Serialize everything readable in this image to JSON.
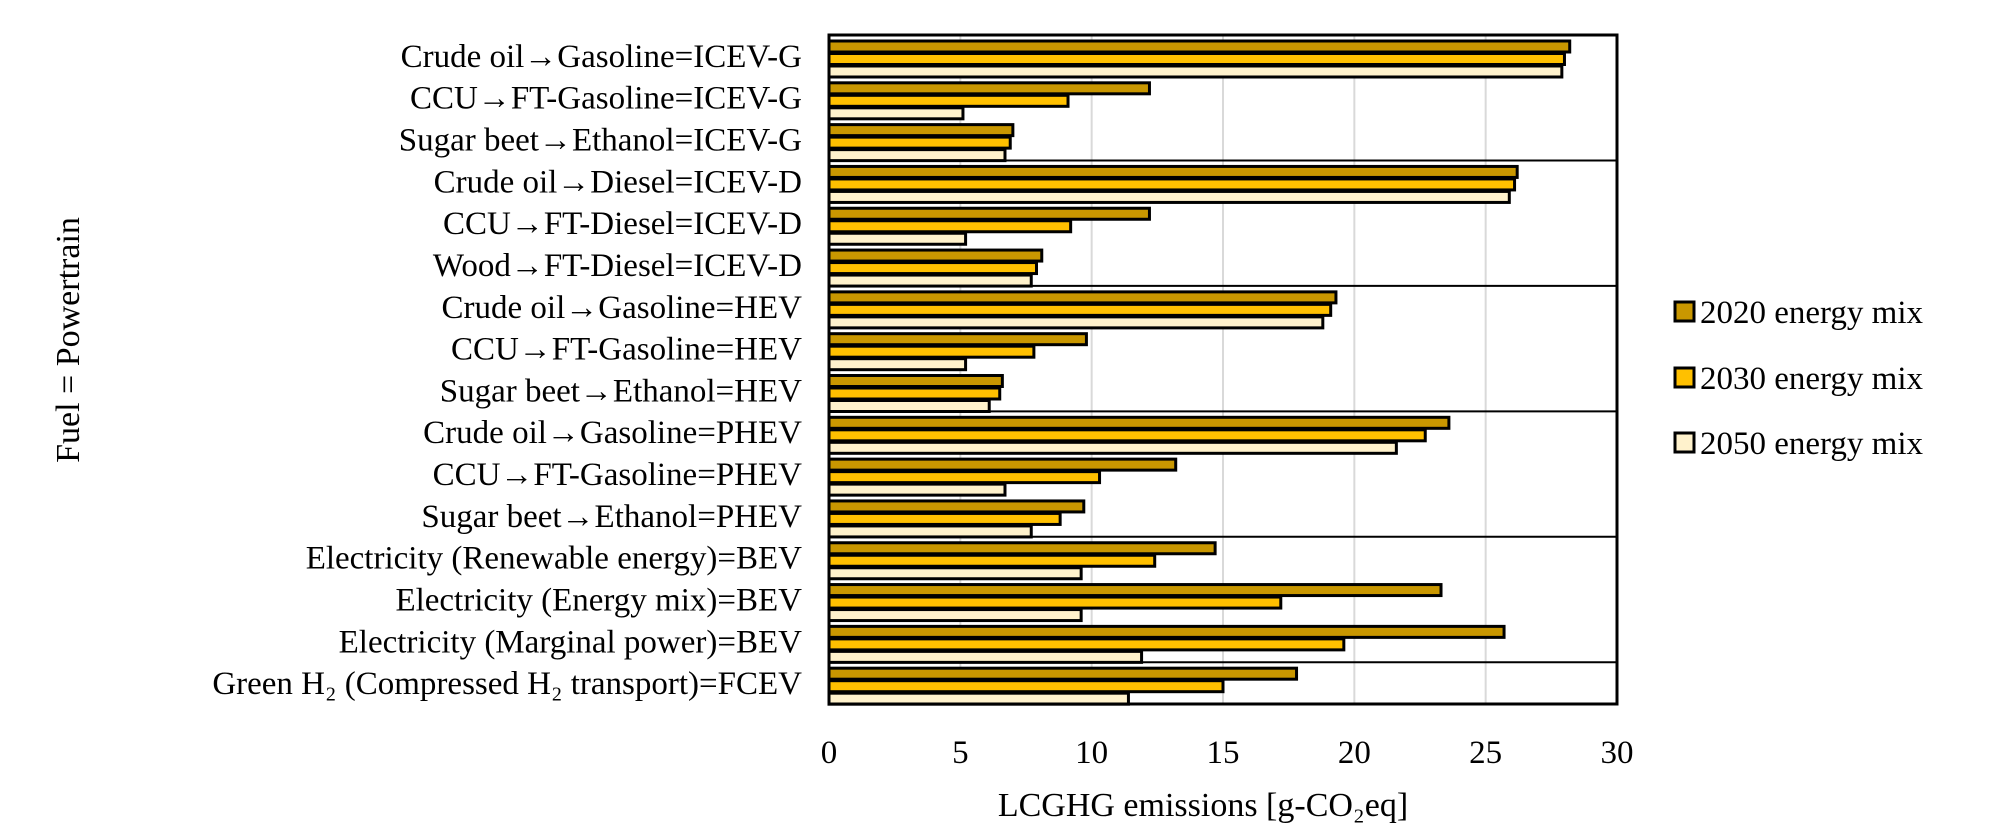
{
  "chart_data": {
    "type": "bar",
    "orientation": "horizontal",
    "title": "",
    "xlabel": "LCGHG emissions [g-CO₂eq]",
    "ylabel": "Fuel = Powertrain",
    "xlim": [
      0,
      30
    ],
    "xticks": [
      0,
      5,
      10,
      15,
      20,
      25,
      30
    ],
    "grid": "vertical",
    "legend_position": "right",
    "group_separators_after": [
      3,
      6,
      9,
      12,
      15
    ],
    "categories": [
      "Crude oil→Gasoline=ICEV-G",
      "CCU→FT-Gasoline=ICEV-G",
      "Sugar beet→Ethanol=ICEV-G",
      "Crude oil→Diesel=ICEV-D",
      "CCU→FT-Diesel=ICEV-D",
      "Wood→FT-Diesel=ICEV-D",
      "Crude oil→Gasoline=HEV",
      "CCU→FT-Gasoline=HEV",
      "Sugar beet→Ethanol=HEV",
      "Crude oil→Gasoline=PHEV",
      "CCU→FT-Gasoline=PHEV",
      "Sugar beet→Ethanol=PHEV",
      "Electricity (Renewable energy)=BEV",
      "Electricity (Energy mix)=BEV",
      "Electricity (Marginal power)=BEV",
      "Green H₂ (Compressed H₂  transport)=FCEV"
    ],
    "series": [
      {
        "name": "2020 energy mix",
        "color": "#C99700",
        "values": [
          28.2,
          12.2,
          7.0,
          26.2,
          12.2,
          8.1,
          19.3,
          9.8,
          6.6,
          23.6,
          13.2,
          9.7,
          14.7,
          23.3,
          25.7,
          17.8
        ]
      },
      {
        "name": "2030 energy mix",
        "color": "#FFC000",
        "values": [
          28.0,
          9.1,
          6.9,
          26.1,
          9.2,
          7.9,
          19.1,
          7.8,
          6.5,
          22.7,
          10.3,
          8.8,
          12.4,
          17.2,
          19.6,
          15.0
        ]
      },
      {
        "name": "2050 energy mix",
        "color": "#FFF2CC",
        "values": [
          27.9,
          5.1,
          6.7,
          25.9,
          5.2,
          7.7,
          18.8,
          5.2,
          6.1,
          21.6,
          6.7,
          7.7,
          9.6,
          9.6,
          11.9,
          11.4
        ]
      }
    ]
  }
}
